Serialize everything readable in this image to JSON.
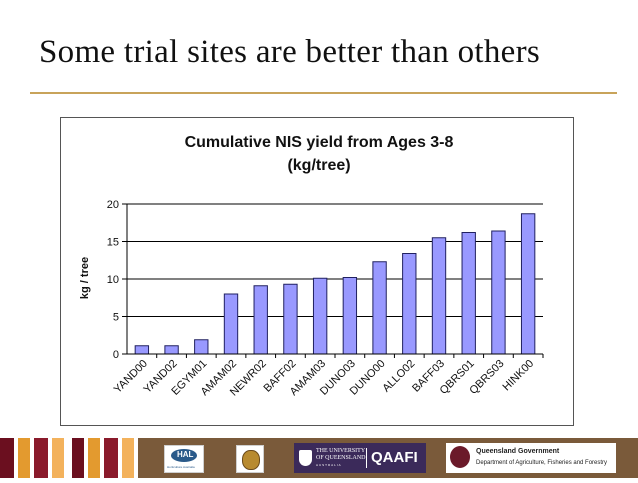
{
  "slide": {
    "title": "Some trial sites are better than others"
  },
  "colors": {
    "rule": "#c8a35a",
    "bar_fill": "#9999ff",
    "bar_stroke": "#202060",
    "footer_stripes": [
      "#6b0f1f",
      "#e39a2f",
      "#8a1a2b",
      "#f3b25c"
    ],
    "footer_bg": "#7a5a3a"
  },
  "chart_data": {
    "type": "bar",
    "title_line1": "Cumulative NIS yield from Ages 3-8",
    "title_line2": "(kg/tree)",
    "ylabel": "kg / tree",
    "xlabel": "",
    "ylim": [
      0,
      20
    ],
    "yticks": [
      0,
      5,
      10,
      15,
      20
    ],
    "grid": true,
    "categories": [
      "YAND00",
      "YAND02",
      "EGYM01",
      "AMAM02",
      "NEWR02",
      "BAFF02",
      "AMAM03",
      "DUNO03",
      "DUNO00",
      "ALLO02",
      "BAFF03",
      "QBRS01",
      "QBRS03",
      "HINK00"
    ],
    "values": [
      1.1,
      1.1,
      1.9,
      8.0,
      9.1,
      9.3,
      10.1,
      10.2,
      12.3,
      13.4,
      15.5,
      16.2,
      16.4,
      18.7
    ]
  },
  "footer": {
    "logos": {
      "hal": "HAL",
      "hal_sub": "Horticulture Australia",
      "uq_line1": "THE UNIVERSITY",
      "uq_line2": "OF QUEENSLAND",
      "uq_line3": "AUSTRALIA",
      "qaafi": "QAAFI",
      "qld_line1": "Queensland Government",
      "qld_line2": "Department of Agriculture, Fisheries and Forestry"
    }
  }
}
